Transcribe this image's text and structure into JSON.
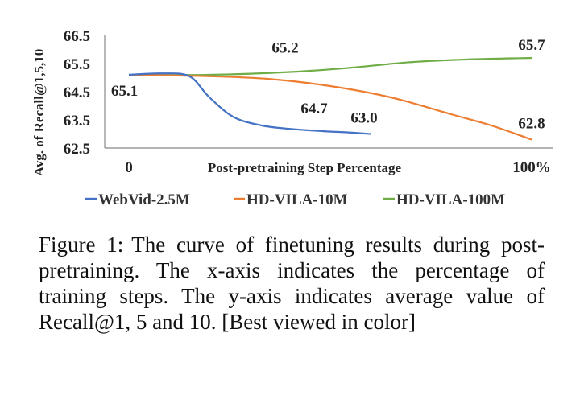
{
  "chart_data": {
    "type": "line",
    "xlabel": "Post-pretraining Step Percentage",
    "ylabel": "Avg. of Recall@1,5,10",
    "xlim": [
      0,
      100
    ],
    "ylim": [
      62.5,
      66.5
    ],
    "y_ticks": [
      "62.5",
      "63.5",
      "64.5",
      "65.5",
      "66.5"
    ],
    "x_ticks": [
      {
        "value": 0,
        "label": "0"
      },
      {
        "value": 100,
        "label": "100%"
      }
    ],
    "grid": false,
    "legend_position": "bottom",
    "series": [
      {
        "name": "WebVid-2.5M",
        "color": "#4472c4",
        "x": [
          0,
          8,
          15,
          20,
          26,
          33,
          40,
          48,
          55,
          60
        ],
        "y": [
          65.1,
          65.15,
          65.05,
          64.3,
          63.6,
          63.3,
          63.18,
          63.1,
          63.05,
          63.0
        ]
      },
      {
        "name": "HD-VILA-10M",
        "color": "#ed7d31",
        "x": [
          0,
          20,
          35,
          50,
          65,
          80,
          90,
          100
        ],
        "y": [
          65.1,
          65.05,
          64.95,
          64.7,
          64.3,
          63.7,
          63.3,
          62.8
        ]
      },
      {
        "name": "HD-VILA-100M",
        "color": "#70ad47",
        "x": [
          0,
          20,
          40,
          55,
          70,
          85,
          100
        ],
        "y": [
          65.1,
          65.1,
          65.2,
          65.35,
          65.55,
          65.65,
          65.7
        ]
      }
    ],
    "annotations": [
      {
        "text": "65.1",
        "x": 0,
        "y": 65.1,
        "anchor": "start",
        "dx": -22,
        "dy": 26
      },
      {
        "text": "65.2",
        "x": 40,
        "y": 65.2,
        "anchor": "middle",
        "dx": -6,
        "dy": -24
      },
      {
        "text": "64.7",
        "x": 50,
        "y": 64.7,
        "anchor": "middle",
        "dx": -20,
        "dy": 34
      },
      {
        "text": "63.0",
        "x": 60,
        "y": 63.0,
        "anchor": "middle",
        "dx": -8,
        "dy": -14
      },
      {
        "text": "65.7",
        "x": 100,
        "y": 65.7,
        "anchor": "middle",
        "dx": 0,
        "dy": -10
      },
      {
        "text": "62.8",
        "x": 100,
        "y": 62.8,
        "anchor": "middle",
        "dx": 0,
        "dy": -14
      }
    ]
  },
  "caption": {
    "label": "Figure 1:",
    "text": "The curve of finetuning results during post-pretraining. The x-axis indicates the percentage of training steps. The y-axis indicates average value of Recall@1, 5 and 10. [Best viewed in color]"
  }
}
